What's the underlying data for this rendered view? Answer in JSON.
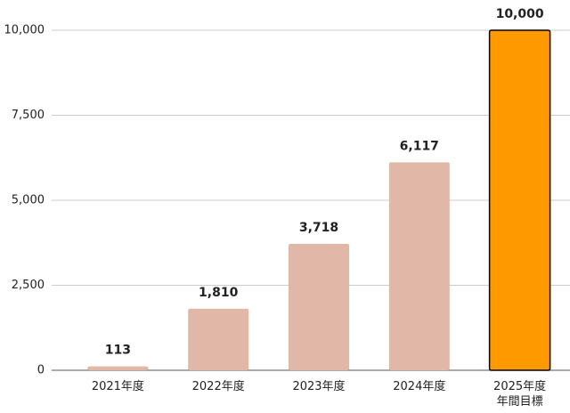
{
  "chart_data": {
    "type": "bar",
    "categories": [
      "2021年度",
      "2022年度",
      "2023年度",
      "2024年度",
      "2025年度\n年間目標"
    ],
    "values": [
      113,
      1810,
      3718,
      6117,
      10000
    ],
    "value_labels": [
      "113",
      "1,810",
      "3,718",
      "6,117",
      "10,000"
    ],
    "colors": [
      "#e1b7a7",
      "#e1b7a7",
      "#e1b7a7",
      "#e1b7a7",
      "#ff9900"
    ],
    "edgecolors": [
      null,
      null,
      null,
      null,
      "#000000"
    ],
    "ylim": [
      0,
      10000
    ],
    "yticks": [
      0,
      {
        "value": 2500,
        "label": "2,500"
      },
      {
        "value": 5000,
        "label": "5,000"
      },
      {
        "value": 7500,
        "label": "7,500"
      },
      {
        "value": 10000,
        "label": "10,000"
      }
    ],
    "grid": true
  }
}
